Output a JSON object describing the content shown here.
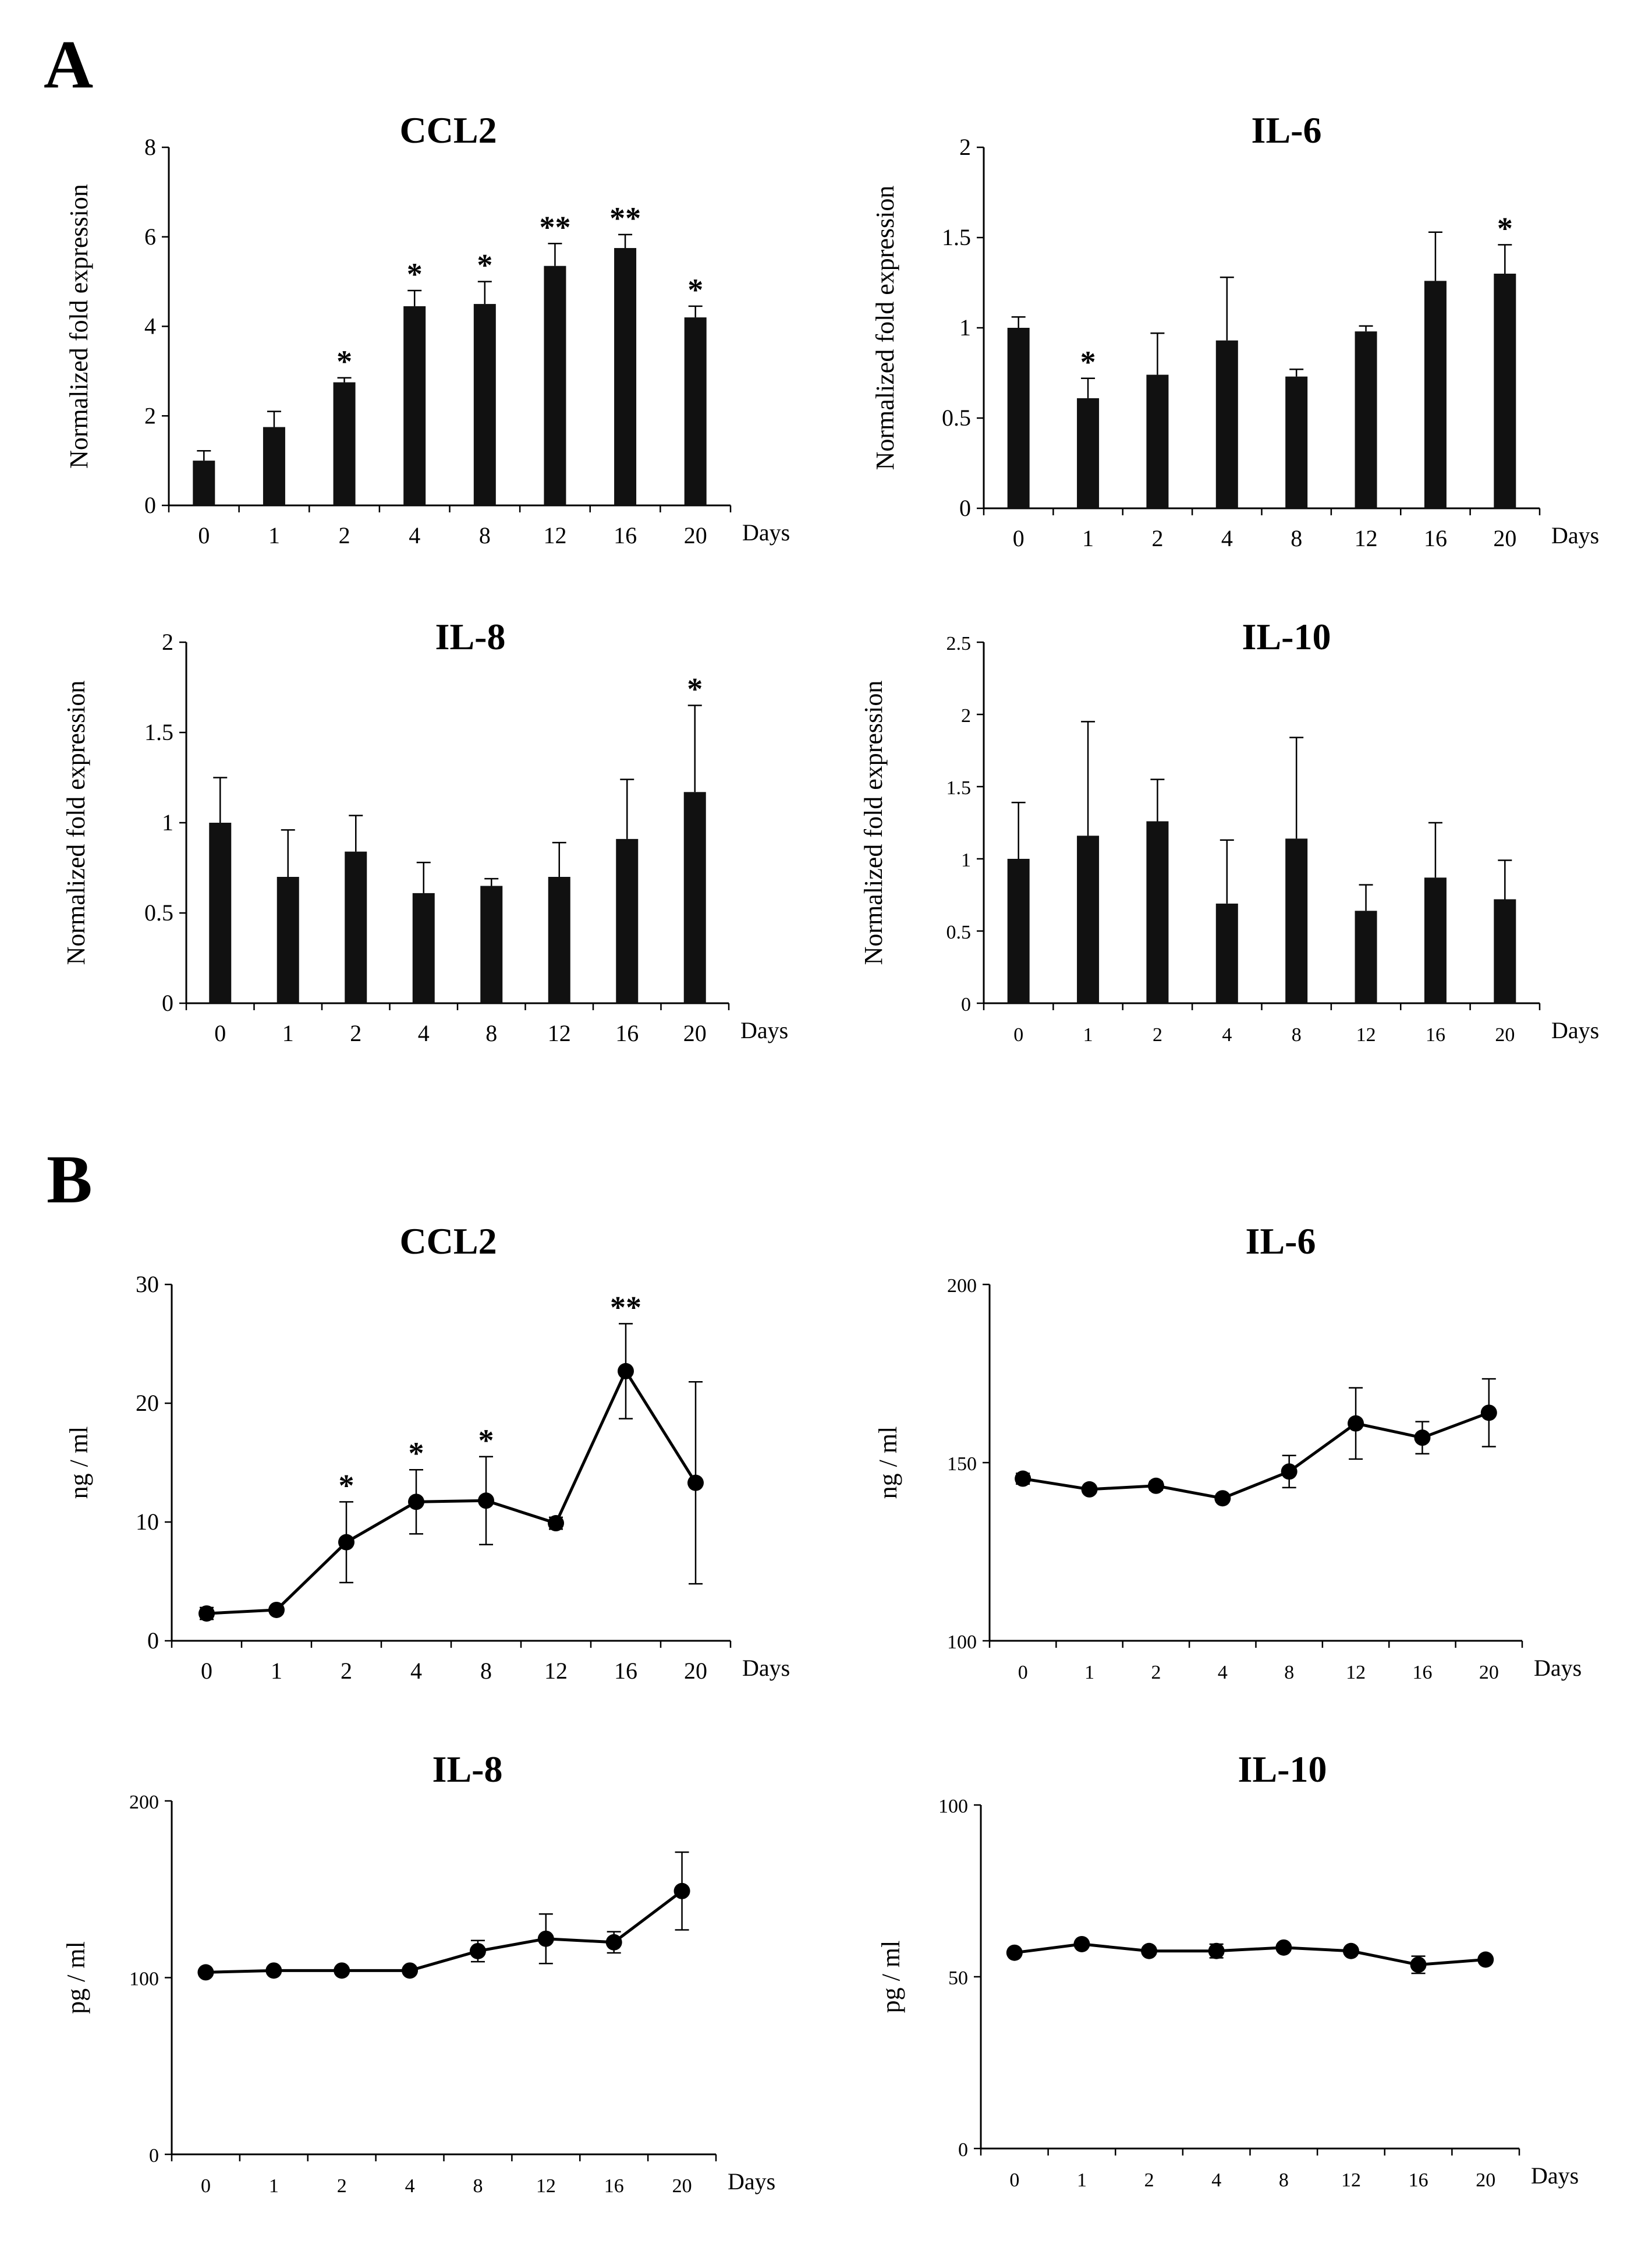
{
  "figure": {
    "panel_labels": [
      "A",
      "B"
    ]
  },
  "chart_data": [
    {
      "type": "bar",
      "panel": "A",
      "title": "CCL2",
      "xlabel": "Days",
      "ylabel": "Normalized fold expression",
      "categories": [
        "0",
        "1",
        "2",
        "4",
        "8",
        "12",
        "16",
        "20"
      ],
      "values": [
        1.0,
        1.75,
        2.75,
        4.45,
        4.5,
        5.35,
        5.75,
        4.2
      ],
      "errors": [
        0.22,
        0.35,
        0.1,
        0.35,
        0.5,
        0.5,
        0.3,
        0.25
      ],
      "significance": [
        "",
        "",
        "*",
        "*",
        "*",
        "**",
        "**",
        "*"
      ],
      "ylim": [
        0,
        8
      ],
      "yticks": [
        0,
        2,
        4,
        6,
        8
      ],
      "ytick_labels": [
        "0",
        "2",
        "4",
        "6",
        "8"
      ]
    },
    {
      "type": "bar",
      "panel": "A",
      "title": "IL-6",
      "xlabel": "Days",
      "ylabel": "Normalized fold expression",
      "categories": [
        "0",
        "1",
        "2",
        "4",
        "8",
        "12",
        "16",
        "20"
      ],
      "values": [
        1.0,
        0.61,
        0.74,
        0.93,
        0.73,
        0.98,
        1.26,
        1.3
      ],
      "errors": [
        0.06,
        0.11,
        0.23,
        0.35,
        0.04,
        0.03,
        0.27,
        0.16
      ],
      "significance": [
        "",
        "*",
        "",
        "",
        "",
        "",
        "",
        "*"
      ],
      "ylim": [
        0,
        2
      ],
      "yticks": [
        0,
        0.5,
        1,
        1.5,
        2
      ],
      "ytick_labels": [
        "0",
        "0.5",
        "1",
        "1.5",
        "2"
      ]
    },
    {
      "type": "bar",
      "panel": "A",
      "title": "IL-8",
      "xlabel": "Days",
      "ylabel": "Normalized fold expression",
      "categories": [
        "0",
        "1",
        "2",
        "4",
        "8",
        "12",
        "16",
        "20"
      ],
      "values": [
        1.0,
        0.7,
        0.84,
        0.61,
        0.65,
        0.7,
        0.91,
        1.17
      ],
      "errors": [
        0.25,
        0.26,
        0.2,
        0.17,
        0.04,
        0.19,
        0.33,
        0.48
      ],
      "significance": [
        "",
        "",
        "",
        "",
        "",
        "",
        "",
        "*"
      ],
      "ylim": [
        0,
        2
      ],
      "yticks": [
        0,
        0.5,
        1,
        1.5,
        2
      ],
      "ytick_labels": [
        "0",
        "0.5",
        "1",
        "1.5",
        "2"
      ]
    },
    {
      "type": "bar",
      "panel": "A",
      "title": "IL-10",
      "xlabel": "Days",
      "ylabel": "Normalized fold expression",
      "categories": [
        "0",
        "1",
        "2",
        "4",
        "8",
        "12",
        "16",
        "20"
      ],
      "values": [
        1.0,
        1.16,
        1.26,
        0.69,
        1.14,
        0.64,
        0.87,
        0.72
      ],
      "errors": [
        0.39,
        0.79,
        0.29,
        0.44,
        0.7,
        0.18,
        0.38,
        0.27
      ],
      "significance": [
        "",
        "",
        "",
        "",
        "",
        "",
        "",
        ""
      ],
      "ylim": [
        0,
        2.5
      ],
      "yticks": [
        0,
        0.5,
        1,
        1.5,
        2,
        2.5
      ],
      "ytick_labels": [
        "0",
        "0.5",
        "1",
        "1.5",
        "2",
        "2.5"
      ]
    },
    {
      "type": "line",
      "panel": "B",
      "title": "CCL2",
      "xlabel": "Days",
      "ylabel": "ng / ml",
      "categories": [
        "0",
        "1",
        "2",
        "4",
        "8",
        "12",
        "16",
        "20"
      ],
      "values": [
        2.3,
        2.6,
        8.3,
        11.7,
        11.8,
        9.9,
        22.7,
        13.3
      ],
      "errors": [
        0.5,
        0.3,
        3.4,
        2.7,
        3.7,
        0.5,
        4.0,
        8.5
      ],
      "significance": [
        "",
        "",
        "*",
        "*",
        "*",
        "",
        "**",
        ""
      ],
      "ylim": [
        0,
        30
      ],
      "yticks": [
        0,
        10,
        20,
        30
      ],
      "ytick_labels": [
        "0",
        "10",
        "20",
        "30"
      ]
    },
    {
      "type": "line",
      "panel": "B",
      "title": "IL-6",
      "xlabel": "Days",
      "ylabel": "ng / ml",
      "categories": [
        "0",
        "1",
        "2",
        "4",
        "8",
        "12",
        "16",
        "20"
      ],
      "values": [
        145.5,
        142.5,
        143.5,
        140,
        147.5,
        161,
        157,
        164
      ],
      "errors": [
        1.5,
        1.0,
        1.2,
        1.0,
        4.5,
        10,
        4.5,
        9.5
      ],
      "significance": [
        "",
        "",
        "",
        "",
        "",
        "",
        "",
        ""
      ],
      "ylim": [
        100,
        200
      ],
      "yticks": [
        100,
        150,
        200
      ],
      "ytick_labels": [
        "100",
        "150",
        "200"
      ]
    },
    {
      "type": "line",
      "panel": "B",
      "title": "IL-8",
      "xlabel": "Days",
      "ylabel": "pg / ml",
      "categories": [
        "0",
        "1",
        "2",
        "4",
        "8",
        "12",
        "16",
        "20"
      ],
      "values": [
        103,
        104,
        104,
        104,
        115,
        122,
        120,
        149
      ],
      "errors": [
        1.5,
        1.0,
        1.0,
        1.0,
        6,
        14,
        6,
        22
      ],
      "significance": [
        "",
        "",
        "",
        "",
        "",
        "",
        "",
        ""
      ],
      "ylim": [
        0,
        200
      ],
      "yticks": [
        0,
        100,
        200
      ],
      "ytick_labels": [
        "0",
        "100",
        "200"
      ]
    },
    {
      "type": "line",
      "panel": "B",
      "title": "IL-10",
      "xlabel": "Days",
      "ylabel": "pg / ml",
      "categories": [
        "0",
        "1",
        "2",
        "4",
        "8",
        "12",
        "16",
        "20"
      ],
      "values": [
        57,
        59.5,
        57.5,
        57.5,
        58.5,
        57.5,
        53.5,
        55
      ],
      "errors": [
        1.0,
        1.0,
        1.0,
        2.0,
        1.0,
        1.0,
        2.5,
        1.0
      ],
      "significance": [
        "",
        "",
        "",
        "",
        "",
        "",
        "",
        ""
      ],
      "ylim": [
        0,
        100
      ],
      "yticks": [
        0,
        50,
        100
      ],
      "ytick_labels": [
        "0",
        "50",
        "100"
      ]
    }
  ]
}
